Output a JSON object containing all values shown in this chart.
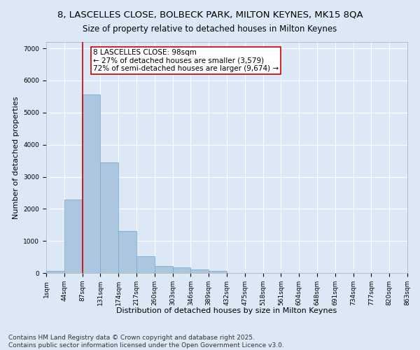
{
  "title_line1": "8, LASCELLES CLOSE, BOLBECK PARK, MILTON KEYNES, MK15 8QA",
  "title_line2": "Size of property relative to detached houses in Milton Keynes",
  "xlabel": "Distribution of detached houses by size in Milton Keynes",
  "ylabel": "Number of detached properties",
  "bar_values": [
    75,
    2300,
    5570,
    3450,
    1320,
    520,
    210,
    185,
    100,
    55,
    0,
    0,
    0,
    0,
    0,
    0,
    0,
    0,
    0,
    0
  ],
  "bin_labels": [
    "1sqm",
    "44sqm",
    "87sqm",
    "131sqm",
    "174sqm",
    "217sqm",
    "260sqm",
    "303sqm",
    "346sqm",
    "389sqm",
    "432sqm",
    "475sqm",
    "518sqm",
    "561sqm",
    "604sqm",
    "648sqm",
    "691sqm",
    "734sqm",
    "777sqm",
    "820sqm",
    "863sqm"
  ],
  "bar_color": "#adc6e0",
  "bar_edge_color": "#6fa8d0",
  "vline_x": 2,
  "vline_color": "#cc0000",
  "annotation_text_line1": "8 LASCELLES CLOSE: 98sqm",
  "annotation_text_line2": "← 27% of detached houses are smaller (3,579)",
  "annotation_text_line3": "72% of semi-detached houses are larger (9,674) →",
  "ylim": [
    0,
    7200
  ],
  "yticks": [
    0,
    1000,
    2000,
    3000,
    4000,
    5000,
    6000,
    7000
  ],
  "bg_color": "#dce8f5",
  "plot_bg_color": "#dce8f5",
  "footer_line1": "Contains HM Land Registry data © Crown copyright and database right 2025.",
  "footer_line2": "Contains public sector information licensed under the Open Government Licence v3.0.",
  "title_fontsize": 9.5,
  "subtitle_fontsize": 8.5,
  "axis_label_fontsize": 8,
  "tick_fontsize": 6.5,
  "annotation_fontsize": 7.5,
  "footer_fontsize": 6.5
}
